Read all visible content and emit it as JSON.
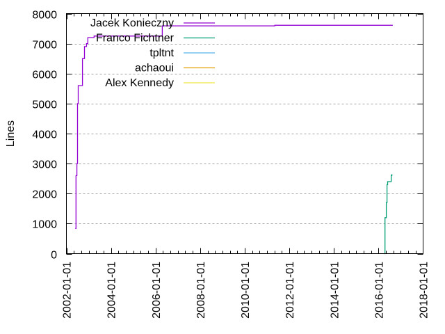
{
  "chart_data": {
    "type": "line",
    "title": "",
    "xlabel": "",
    "ylabel": "Lines",
    "ylim": [
      0,
      8000
    ],
    "xlim": [
      "2002-01-01",
      "2018-01-01"
    ],
    "x_ticks": [
      "2002-01-01",
      "2004-01-01",
      "2006-01-01",
      "2008-01-01",
      "2010-01-01",
      "2012-01-01",
      "2014-01-01",
      "2016-01-01",
      "2018-01-01"
    ],
    "y_ticks": [
      0,
      1000,
      2000,
      3000,
      4000,
      5000,
      6000,
      7000,
      8000
    ],
    "grid": "horizontal dashed",
    "legend_position": "top-left inside",
    "step": true,
    "series": [
      {
        "name": "Jacek Konieczny",
        "color": "#9400d3",
        "points": [
          [
            "2002.40",
            840
          ],
          [
            "2002.43",
            2600
          ],
          [
            "2002.47",
            3000
          ],
          [
            "2002.50",
            5000
          ],
          [
            "2002.53",
            5600
          ],
          [
            "2002.72",
            6500
          ],
          [
            "2002.81",
            6900
          ],
          [
            "2002.90",
            7000
          ],
          [
            "2002.96",
            7200
          ],
          [
            "2003.24",
            7250
          ],
          [
            "2006.30",
            7590
          ],
          [
            "2011.35",
            7610
          ],
          [
            "2016.64",
            7610
          ]
        ]
      },
      {
        "name": "Franco Fichtner",
        "color": "#009e73",
        "points": [
          [
            "2016.26",
            0
          ],
          [
            "2016.29",
            1200
          ],
          [
            "2016.35",
            1700
          ],
          [
            "2016.38",
            2300
          ],
          [
            "2016.41",
            2400
          ],
          [
            "2016.57",
            2600
          ],
          [
            "2016.60",
            2650
          ]
        ]
      },
      {
        "name": "tpltnt",
        "color": "#56b4e9",
        "points": []
      },
      {
        "name": "achaoui",
        "color": "#e69f00",
        "points": []
      },
      {
        "name": "Alex Kennedy",
        "color": "#f0e442",
        "points": []
      }
    ]
  },
  "axes": {
    "ylabel": "Lines",
    "y_tick_labels": [
      "0",
      "1000",
      "2000",
      "3000",
      "4000",
      "5000",
      "6000",
      "7000",
      "8000"
    ],
    "x_tick_labels": [
      "2002-01-01",
      "2004-01-01",
      "2006-01-01",
      "2008-01-01",
      "2010-01-01",
      "2012-01-01",
      "2014-01-01",
      "2016-01-01",
      "2018-01-01"
    ]
  },
  "legend": [
    {
      "label": "Jacek Konieczny",
      "color": "#9400d3"
    },
    {
      "label": "Franco Fichtner",
      "color": "#009e73"
    },
    {
      "label": "tpltnt",
      "color": "#56b4e9"
    },
    {
      "label": "achaoui",
      "color": "#e69f00"
    },
    {
      "label": "Alex Kennedy",
      "color": "#f0e442"
    }
  ]
}
